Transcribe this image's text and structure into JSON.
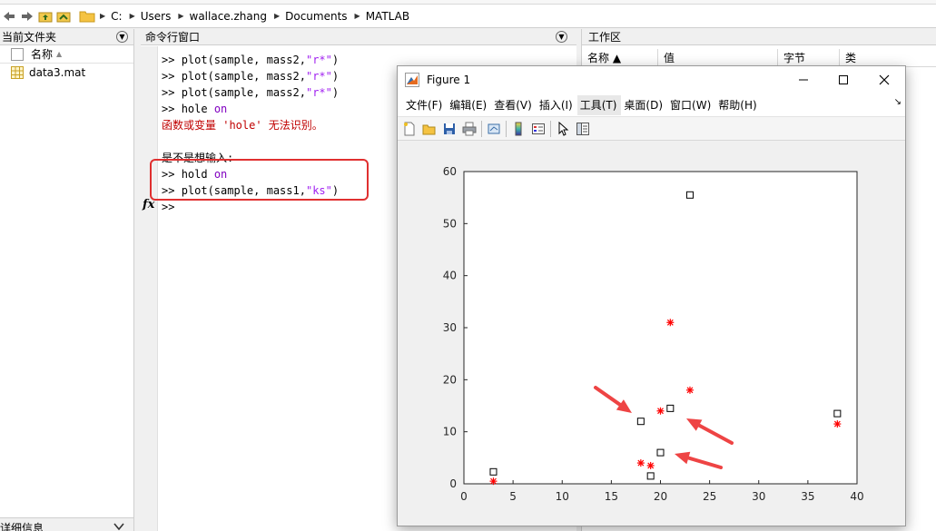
{
  "address": {
    "path": [
      "C:",
      "Users",
      "wallace.zhang",
      "Documents",
      "MATLAB"
    ]
  },
  "file_browser": {
    "title": "当前文件夹",
    "col_name": "名称",
    "files": [
      {
        "name": "data3.mat",
        "icon": "mat-file-icon"
      }
    ],
    "details": "详细信息"
  },
  "command_window": {
    "title": "命令行窗口",
    "lines": [
      {
        "prompt": ">> ",
        "cmd": "plot(sample, mass2,",
        "str": "\"r*\"",
        "end": ")"
      },
      {
        "prompt": ">> ",
        "cmd": "plot(sample, mass2,",
        "str": "\"r*\"",
        "end": ")"
      },
      {
        "prompt": ">> ",
        "cmd": "plot(sample, mass2,",
        "str": "\"r*\"",
        "end": ")"
      },
      {
        "prompt": ">> ",
        "cmd": "hole ",
        "str": "on",
        "end": ""
      }
    ],
    "error": "函数或变量 'hole' 无法识别。",
    "suggest": "是不是想输入:",
    "highlight_lines": [
      {
        "prompt": ">> ",
        "cmd": "hold ",
        "str": "on",
        "end": ""
      },
      {
        "prompt": ">> ",
        "cmd": "plot(sample, mass1,",
        "str": "\"ks\"",
        "end": ")"
      }
    ],
    "current_prompt": ">>",
    "fx": "fx"
  },
  "workspace": {
    "title": "工作区",
    "columns": [
      "名称 ▲",
      "值",
      "字节",
      "类"
    ]
  },
  "figure": {
    "title": "Figure 1",
    "menus": [
      "文件(F)",
      "编辑(E)",
      "查看(V)",
      "插入(I)",
      "工具(T)",
      "桌面(D)",
      "窗口(W)",
      "帮助(H)"
    ],
    "toolbar_icons": [
      "new-figure-icon",
      "open-icon",
      "save-icon",
      "print-icon",
      "link-icon",
      "colorbar-icon",
      "legend-icon",
      "pointer-icon",
      "property-inspector-icon"
    ]
  },
  "colors": {
    "highlight_box": "#e03030",
    "arrow": "#ee4444",
    "red_marker": "#ff0000"
  },
  "chart_data": {
    "type": "scatter",
    "title": "",
    "xlabel": "",
    "ylabel": "",
    "xlim": [
      0,
      40
    ],
    "ylim": [
      0,
      60
    ],
    "xticks": [
      0,
      5,
      10,
      15,
      20,
      25,
      30,
      35,
      40
    ],
    "yticks": [
      0,
      10,
      20,
      30,
      40,
      50,
      60
    ],
    "grid": false,
    "series": [
      {
        "marker": "r*",
        "points": [
          [
            3,
            0.5
          ],
          [
            18,
            4
          ],
          [
            19,
            3.5
          ],
          [
            20,
            14
          ],
          [
            21,
            31
          ],
          [
            23,
            18
          ],
          [
            38,
            11.5
          ]
        ]
      },
      {
        "marker": "ks",
        "points": [
          [
            3,
            2.3
          ],
          [
            18,
            12
          ],
          [
            19,
            1.5
          ],
          [
            20,
            6
          ],
          [
            21,
            14.5
          ],
          [
            23,
            55.5
          ],
          [
            38,
            13.5
          ]
        ]
      }
    ]
  }
}
